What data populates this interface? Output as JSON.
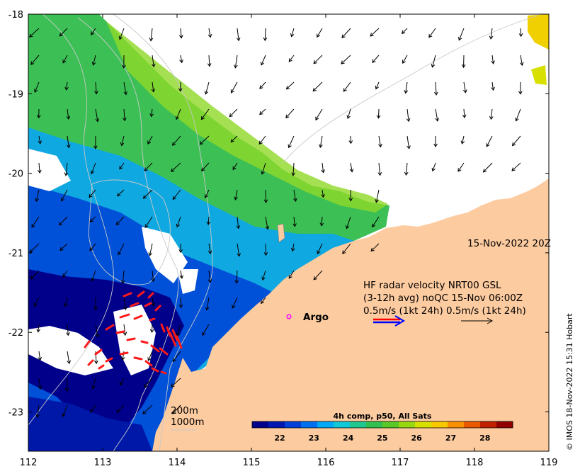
{
  "map": {
    "date_label": "15-Nov-2022 20Z",
    "legend": {
      "line1": "HF radar velocity  NRT00 GSL",
      "line2": "(3-12h avg) noQC 15-Nov 06:00Z",
      "line3": "0.5m/s (1kt 24h)   0.5m/s (1kt 24h)"
    },
    "argo_label": "Argo",
    "isobaths": [
      "200m",
      "1000m"
    ],
    "colorbar": {
      "title": "4h comp, p50, All Sats",
      "ticks": [
        "22",
        "23",
        "24",
        "25",
        "26",
        "27",
        "28"
      ],
      "colors": [
        "#00008b",
        "#0018b0",
        "#0040d8",
        "#0070f0",
        "#00a8f8",
        "#10c8d8",
        "#20c890",
        "#30c050",
        "#58c828",
        "#98d810",
        "#d8e000",
        "#f8c800",
        "#f89000",
        "#e85800",
        "#c02000",
        "#900000"
      ]
    },
    "credit": "© IMOS 18-Nov-2022 15:31 Hobart",
    "axes": {
      "x_ticks": [
        "112",
        "113",
        "114",
        "115",
        "116",
        "117",
        "118",
        "119"
      ],
      "y_ticks": [
        "-18",
        "-19",
        "-20",
        "-21",
        "-22",
        "-23"
      ]
    },
    "colors": {
      "land": "#fdcba0",
      "deep": "#00008b",
      "radar_arrows": "#ff1a1a",
      "legend_arrow_red": "#ff0000",
      "legend_arrow_blue": "#0000ff",
      "argo_marker": "#ff00ff"
    }
  }
}
